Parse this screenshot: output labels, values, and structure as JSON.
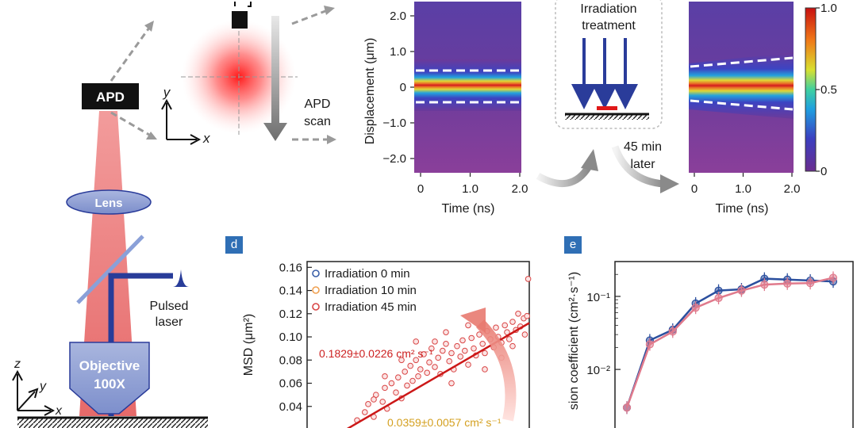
{
  "panel_labels": {
    "d": "d",
    "e": "e"
  },
  "setup": {
    "apd": "APD",
    "lens": "Lens",
    "objective_line1": "Objective",
    "objective_line2": "100X",
    "pulsed_line1": "Pulsed",
    "pulsed_line2": "laser",
    "apd_scan_line1": "APD",
    "apd_scan_line2": "scan",
    "axis_x": "x",
    "axis_y": "y",
    "axis_z": "z"
  },
  "irradiation": {
    "line1": "Irradiation",
    "line2": "treatment",
    "later_line1": "45 min",
    "later_line2": "later"
  },
  "chart_data": [
    {
      "id": "heatmap_before",
      "type": "heatmap",
      "ylabel": "Displacement (μm)",
      "xlabel": "Time (ns)",
      "x_ticks": [
        "0",
        "1.0",
        "2.0"
      ],
      "y_ticks": [
        "2.0",
        "1.0",
        "0",
        "−1.0",
        "−2.0"
      ],
      "xlim": [
        0,
        2.0
      ],
      "ylim": [
        -2.4,
        2.4
      ],
      "profile": "constant width"
    },
    {
      "id": "heatmap_after",
      "type": "heatmap",
      "xlabel": "Time (ns)",
      "x_ticks": [
        "0",
        "1.0",
        "2.0"
      ],
      "xlim": [
        0,
        2.0
      ],
      "profile": "broadening with time",
      "colorbar": {
        "ticks": [
          "1.0",
          "0.5",
          "0"
        ],
        "range": [
          0,
          1
        ]
      }
    },
    {
      "id": "msd",
      "type": "scatter",
      "ylabel": "MSD (μm²)",
      "y_ticks": [
        "0.16",
        "0.14",
        "0.12",
        "0.10",
        "0.08",
        "0.06",
        "0.04"
      ],
      "ylim": [
        0.02,
        0.165
      ],
      "xlim": [
        0,
        2.0
      ],
      "legend": [
        "Irradiation 0 min",
        "Irradiation 10 min",
        "Irradiation 45 min"
      ],
      "legend_colors": [
        "#3a5fa8",
        "#f0a050",
        "#d94545"
      ],
      "annotations": [
        {
          "text": "0.1829±0.0226 cm² s⁻¹",
          "color": "#cc2020"
        },
        {
          "text": "0.0359±0.0057 cm² s⁻¹",
          "color": "#d4a020"
        }
      ],
      "fit_line": {
        "x": [
          0.35,
          2.0
        ],
        "y": [
          0.02,
          0.112
        ]
      },
      "series": [
        {
          "name": "Irradiation 45 min",
          "points": [
            [
              0.45,
              0.028
            ],
            [
              0.52,
              0.035
            ],
            [
              0.55,
              0.042
            ],
            [
              0.6,
              0.031
            ],
            [
              0.62,
              0.05
            ],
            [
              0.68,
              0.044
            ],
            [
              0.7,
              0.056
            ],
            [
              0.72,
              0.038
            ],
            [
              0.76,
              0.06
            ],
            [
              0.8,
              0.052
            ],
            [
              0.82,
              0.065
            ],
            [
              0.85,
              0.047
            ],
            [
              0.88,
              0.07
            ],
            [
              0.9,
              0.058
            ],
            [
              0.93,
              0.075
            ],
            [
              0.95,
              0.062
            ],
            [
              0.98,
              0.08
            ],
            [
              1.0,
              0.066
            ],
            [
              1.02,
              0.072
            ],
            [
              1.05,
              0.085
            ],
            [
              1.08,
              0.069
            ],
            [
              1.1,
              0.078
            ],
            [
              1.12,
              0.09
            ],
            [
              1.15,
              0.074
            ],
            [
              1.18,
              0.082
            ],
            [
              1.2,
              0.068
            ],
            [
              1.22,
              0.088
            ],
            [
              1.25,
              0.094
            ],
            [
              1.28,
              0.079
            ],
            [
              1.3,
              0.086
            ],
            [
              1.32,
              0.072
            ],
            [
              1.35,
              0.092
            ],
            [
              1.38,
              0.083
            ],
            [
              1.4,
              0.097
            ],
            [
              1.42,
              0.088
            ],
            [
              1.45,
              0.076
            ],
            [
              1.48,
              0.099
            ],
            [
              1.5,
              0.09
            ],
            [
              1.52,
              0.084
            ],
            [
              1.55,
              0.102
            ],
            [
              1.58,
              0.094
            ],
            [
              1.6,
              0.086
            ],
            [
              1.62,
              0.105
            ],
            [
              1.65,
              0.098
            ],
            [
              1.68,
              0.091
            ],
            [
              1.7,
              0.108
            ],
            [
              1.72,
              0.1
            ],
            [
              1.75,
              0.095
            ],
            [
              1.78,
              0.11
            ],
            [
              1.8,
              0.104
            ],
            [
              1.82,
              0.098
            ],
            [
              1.85,
              0.113
            ],
            [
              1.88,
              0.106
            ],
            [
              1.9,
              0.12
            ],
            [
              1.92,
              0.109
            ],
            [
              1.95,
              0.116
            ],
            [
              1.96,
              0.102
            ],
            [
              1.98,
              0.118
            ],
            [
              1.99,
              0.15
            ],
            [
              0.98,
              0.096
            ],
            [
              1.3,
              0.06
            ],
            [
              0.7,
              0.066
            ],
            [
              1.6,
              0.072
            ],
            [
              1.45,
              0.11
            ],
            [
              1.75,
              0.082
            ],
            [
              0.85,
              0.08
            ],
            [
              1.15,
              0.096
            ],
            [
              1.85,
              0.092
            ],
            [
              1.25,
              0.104
            ],
            [
              0.6,
              0.046
            ]
          ]
        }
      ]
    },
    {
      "id": "diffusion",
      "type": "line",
      "ylabel": "sion coefficient (cm²·s⁻¹)",
      "y_ticks": [
        "10⁻¹",
        "10⁻²"
      ],
      "yscale": "log",
      "ylim": [
        0.0015,
        0.3
      ],
      "x": [
        0,
        1,
        2,
        3,
        4,
        5,
        6,
        7,
        8,
        9
      ],
      "series": [
        {
          "name": "blue",
          "color": "#2b4f9e",
          "values": [
            0.003,
            0.025,
            0.035,
            0.08,
            0.12,
            0.125,
            0.175,
            0.17,
            0.165,
            0.16
          ]
        },
        {
          "name": "pink",
          "color": "#e07a8c",
          "values": [
            0.003,
            0.022,
            0.033,
            0.07,
            0.095,
            0.12,
            0.145,
            0.15,
            0.152,
            0.18
          ]
        }
      ]
    }
  ]
}
